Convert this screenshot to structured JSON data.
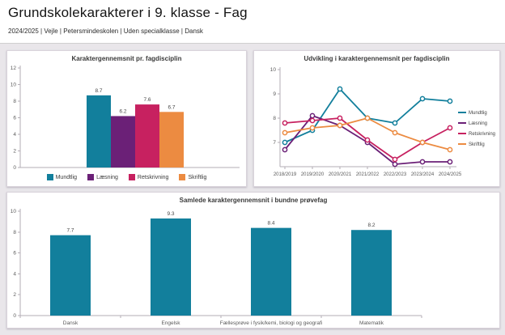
{
  "header": {
    "title": "Grundskolekarakterer i 9. klasse - Fag",
    "subtitle": "2024/2025 | Vejle | Petersmindeskolen | Uden specialklasse | Dansk"
  },
  "colors": {
    "teal": "#127F9C",
    "purple": "#6B2077",
    "crimson": "#C72160",
    "orange": "#EC8B41",
    "axis": "#b3adb5",
    "tick_text": "#5a5a5a",
    "value_label": "#474747",
    "inside_label": "#3a4a50",
    "panel_bg": "#ffffff",
    "dashboard_bg": "#e9e6ea"
  },
  "chart_data": [
    {
      "id": "bar-fagdisciplin",
      "type": "bar",
      "title": "Karaktergennemsnit pr. fagdisciplin",
      "categories": [
        "Mundtlig",
        "Læsning",
        "Retskrivning",
        "Skriftlig"
      ],
      "values": [
        8.7,
        6.2,
        7.6,
        6.7
      ],
      "labels": [
        "8.7",
        "6.2",
        "7.6",
        "6.7"
      ],
      "bar_colors": [
        "#127F9C",
        "#6B2077",
        "#C72160",
        "#EC8B41"
      ],
      "ylim": [
        0,
        12
      ],
      "yticks": [
        0,
        2,
        4,
        6,
        8,
        10,
        12
      ],
      "grid": false,
      "legend_position": "bottom",
      "legend": [
        "Mundtlig",
        "Læsning",
        "Retskrivning",
        "Skriftlig"
      ]
    },
    {
      "id": "line-udvikling",
      "type": "line",
      "title": "Udvikling i karaktergennemsnit per fagdisciplin",
      "x": [
        "2018/2019",
        "2019/2020",
        "2020/2021",
        "2021/2022",
        "2022/2023",
        "2023/2024",
        "2024/2025"
      ],
      "series": [
        {
          "name": "Mundtlig",
          "color": "#127F9C",
          "values": [
            7.0,
            7.5,
            9.2,
            8.0,
            7.8,
            8.8,
            8.7
          ]
        },
        {
          "name": "Læsning",
          "color": "#6B2077",
          "values": [
            6.7,
            8.1,
            7.7,
            7.0,
            6.1,
            6.2,
            6.2
          ]
        },
        {
          "name": "Retskrivning",
          "color": "#C72160",
          "values": [
            7.8,
            7.9,
            8.0,
            7.1,
            6.3,
            7.0,
            7.6
          ]
        },
        {
          "name": "Skriftlig",
          "color": "#EC8B41",
          "values": [
            7.4,
            7.6,
            7.7,
            8.0,
            7.4,
            7.0,
            6.7
          ]
        }
      ],
      "ylim": [
        6,
        10
      ],
      "yticks": [
        7,
        8,
        9,
        10
      ],
      "grid": false,
      "legend_position": "right",
      "marker": "open-circle"
    },
    {
      "id": "bar-provefag",
      "type": "bar",
      "title": "Samlede karaktergennemsnit i bundne prøvefag",
      "categories": [
        "Dansk",
        "Engelsk",
        "Fællesprøve i fysik/kemi, biologi og geografi",
        "Matematik"
      ],
      "values": [
        7.7,
        9.3,
        8.4,
        8.2
      ],
      "labels": [
        "7.7",
        "9.3",
        "8.4",
        "8.2"
      ],
      "bar_colors": [
        "#127F9C",
        "#127F9C",
        "#127F9C",
        "#127F9C"
      ],
      "ylim": [
        0,
        10
      ],
      "yticks": [
        0,
        2,
        4,
        6,
        8,
        10
      ],
      "grid": false,
      "legend_position": "none"
    }
  ]
}
